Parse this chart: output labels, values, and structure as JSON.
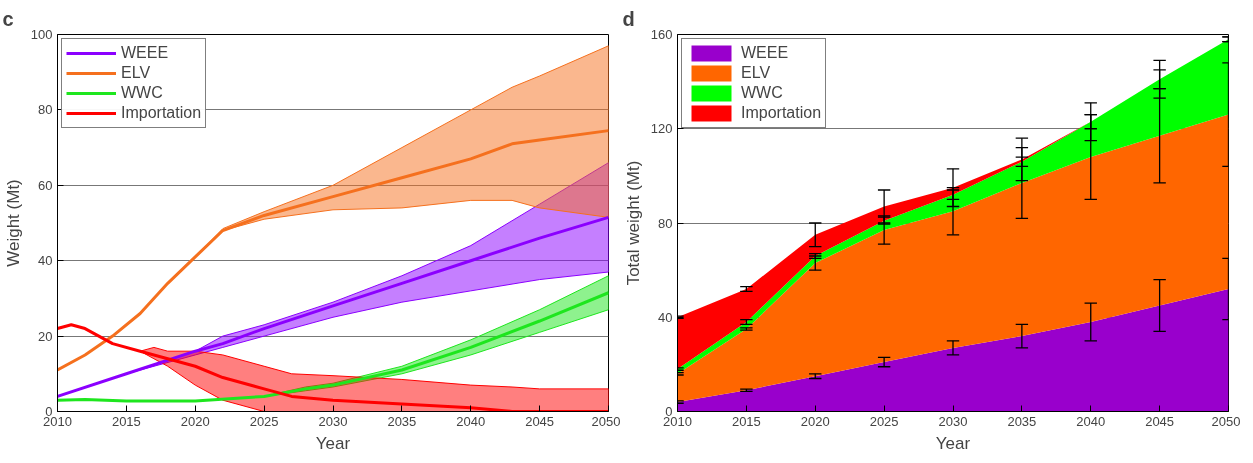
{
  "chart_data": [
    {
      "type": "line",
      "title": "c",
      "xlabel": "Year",
      "ylabel": "Weight (Mt)",
      "xlim": [
        2010,
        2050
      ],
      "ylim": [
        0,
        100
      ],
      "xticks": [
        2010,
        2015,
        2020,
        2025,
        2030,
        2035,
        2040,
        2045,
        2050
      ],
      "yticks": [
        0,
        20,
        40,
        60,
        80,
        100
      ],
      "grid": "y",
      "legend": "top left",
      "series": [
        {
          "name": "WEEE",
          "color": "#8b00ff",
          "x": [
            2010,
            2015,
            2020,
            2022,
            2025,
            2030,
            2035,
            2040,
            2045,
            2050
          ],
          "values": [
            4,
            10,
            16,
            18,
            22,
            28,
            34,
            40,
            46,
            51.5
          ],
          "lower": [
            4,
            10,
            15,
            17,
            20,
            25,
            29,
            32,
            35,
            37
          ],
          "upper": [
            4,
            10,
            16,
            20,
            23,
            29,
            36,
            44,
            55,
            66
          ]
        },
        {
          "name": "ELV",
          "color": "#f5701e",
          "x": [
            2010,
            2012,
            2014,
            2016,
            2018,
            2020,
            2022,
            2025,
            2030,
            2035,
            2040,
            2043,
            2045,
            2050
          ],
          "values": [
            11,
            15,
            20,
            26,
            34,
            41,
            48,
            52,
            57,
            62,
            67,
            71,
            72,
            74.5
          ],
          "lower": [
            11,
            15,
            20,
            26,
            34,
            41,
            48,
            51,
            53.5,
            54,
            56,
            56,
            54,
            51.5
          ],
          "upper": [
            11,
            15,
            20,
            26,
            34,
            41,
            48.5,
            53,
            60,
            70,
            80,
            86,
            89,
            97
          ]
        },
        {
          "name": "WWC",
          "color": "#1ee61e",
          "x": [
            2010,
            2012,
            2015,
            2020,
            2025,
            2028,
            2030,
            2035,
            2040,
            2045,
            2050
          ],
          "values": [
            3,
            3.2,
            2.8,
            2.8,
            4,
            6,
            7,
            11,
            17,
            24,
            31.5
          ],
          "lower": [
            3,
            3.2,
            2.8,
            2.8,
            4,
            5.5,
            6.5,
            10,
            15,
            21,
            27
          ],
          "upper": [
            3,
            3.2,
            2.8,
            2.8,
            4,
            6.5,
            7.5,
            12,
            19,
            27,
            36
          ]
        },
        {
          "name": "Importation",
          "color": "#ff0000",
          "x": [
            2010,
            2011,
            2012,
            2014,
            2016,
            2017,
            2018,
            2020,
            2022,
            2025,
            2027,
            2030,
            2035,
            2040,
            2043,
            2045,
            2050
          ],
          "values": [
            22,
            23,
            22,
            18,
            16,
            15,
            14,
            12,
            9,
            6,
            4,
            3,
            2,
            1,
            0,
            0,
            0
          ],
          "lower": [
            22,
            23,
            22,
            18,
            16,
            14,
            12,
            7,
            3,
            0,
            0,
            0,
            0,
            0,
            0,
            0,
            0
          ],
          "upper": [
            22,
            23,
            22,
            18,
            16,
            17,
            16,
            16,
            15,
            12,
            10,
            9.5,
            8.5,
            7,
            6.5,
            6,
            6
          ]
        }
      ]
    },
    {
      "type": "area",
      "stacked": true,
      "title": "d",
      "xlabel": "Year",
      "ylabel": "Total weight (Mt)",
      "xlim": [
        2010,
        2050
      ],
      "ylim": [
        0,
        160
      ],
      "xticks": [
        2010,
        2015,
        2020,
        2025,
        2030,
        2035,
        2040,
        2045,
        2050
      ],
      "yticks": [
        0,
        40,
        80,
        120,
        160
      ],
      "grid": "y",
      "legend": "top left",
      "x": [
        2010,
        2015,
        2020,
        2025,
        2030,
        2035,
        2040,
        2045,
        2050
      ],
      "series": [
        {
          "name": "WEEE",
          "color": "#9900cc",
          "values": [
            4,
            9,
            15,
            21,
            27,
            32,
            38,
            45,
            52
          ],
          "errors": [
            0.5,
            0.5,
            1,
            2,
            3,
            5,
            8,
            11,
            13
          ]
        },
        {
          "name": "ELV",
          "color": "#ff6600",
          "values": [
            12,
            26,
            48,
            56,
            58,
            65,
            70,
            72,
            74
          ],
          "errors": [
            0.5,
            0.5,
            3,
            6,
            10,
            15,
            18,
            20,
            22
          ]
        },
        {
          "name": "WWC",
          "color": "#00ff00",
          "values": [
            2,
            3,
            3,
            4,
            7,
            9,
            15,
            24,
            32
          ],
          "errors": [
            0.5,
            1,
            1,
            1.5,
            2,
            2,
            3,
            4,
            1
          ]
        },
        {
          "name": "Importation",
          "color": "#ff0000",
          "values": [
            22,
            14,
            9,
            6,
            3,
            1,
            0,
            0,
            0
          ],
          "errors": [
            0.5,
            1,
            5,
            7,
            8,
            9,
            8,
            8,
            1
          ]
        }
      ]
    }
  ]
}
